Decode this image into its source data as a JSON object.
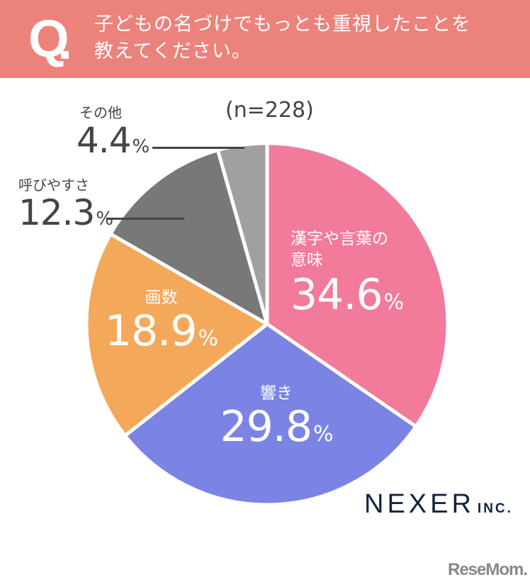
{
  "header": {
    "q_mark": "Q",
    "question_line1": "子どもの名づけでもっとも重視したことを",
    "question_line2": "教えてください。",
    "bg_color": "#ec827c"
  },
  "sample_size": "(n=228)",
  "labels": {
    "kanji": {
      "cat1": "漢字や言葉の",
      "cat2": "意味",
      "val": "34.6",
      "pct": "%"
    },
    "hibiki": {
      "cat": "響き",
      "val": "29.8",
      "pct": "%"
    },
    "kakusu": {
      "cat": "画数",
      "val": "18.9",
      "pct": "%"
    },
    "yobiyasusa": {
      "cat": "呼びやすさ",
      "val": "12.3",
      "pct": "%"
    },
    "other": {
      "cat": "その他",
      "val": "4.4",
      "pct": "%"
    }
  },
  "logos": {
    "nexer": "NEXER",
    "nexer_inc": "INC.",
    "resemom": "ReseMom."
  },
  "chart_data": {
    "type": "pie",
    "title": "子どもの名づけでもっとも重視したことを教えてください。",
    "note": "(n=228)",
    "categories": [
      "漢字や言葉の意味",
      "響き",
      "画数",
      "呼びやすさ",
      "その他"
    ],
    "values": [
      34.6,
      29.8,
      18.9,
      12.3,
      4.4
    ],
    "colors": [
      "#f27a9b",
      "#7b84e4",
      "#f4a85a",
      "#787878",
      "#a0a0a0"
    ],
    "start_angle": "12 o'clock, clockwise",
    "center": [
      377,
      457
    ],
    "radius": 255
  }
}
